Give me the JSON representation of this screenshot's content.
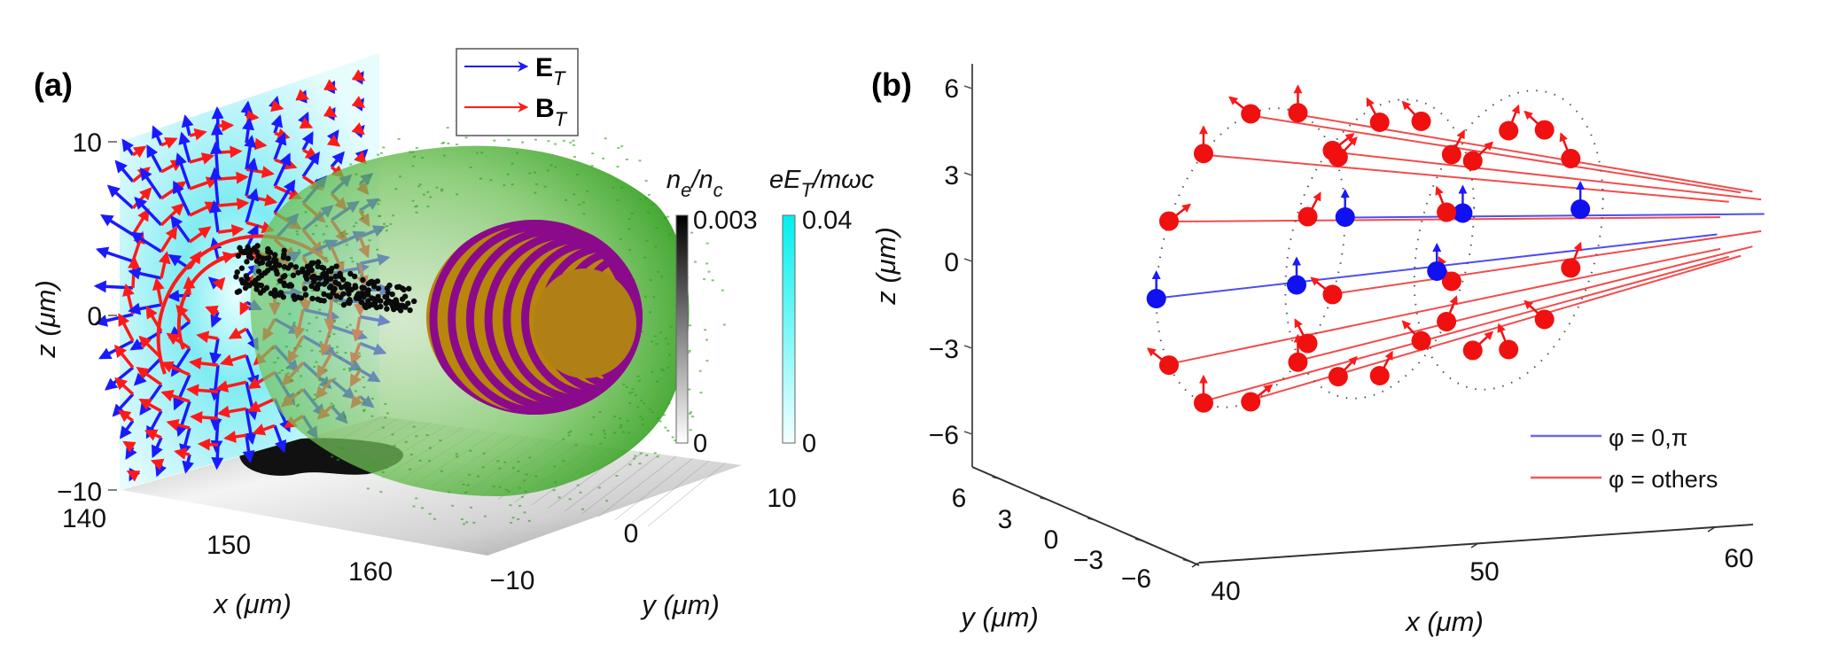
{
  "chart_data": [
    {
      "panel": "(a)",
      "type": "scatter",
      "description": "3D rendering: transverse E (blue arrows) and B (red arrows) field vectors on a cyan back plane, green electron-density shell, black electron bunch, striped purple/gold sphere, and grayscale density projection on floor",
      "xlabel": "x (μm)",
      "ylabel": "y (μm)",
      "zlabel": "z (μm)",
      "x_ticks": [
        "140",
        "150",
        "160"
      ],
      "y_ticks": [
        "−10",
        "0",
        "10"
      ],
      "z_ticks": [
        "10",
        "0",
        "−10"
      ],
      "xlim": [
        140,
        165
      ],
      "ylim": [
        -10,
        10
      ],
      "zlim": [
        -10,
        10
      ],
      "legend": {
        "placement": "top-center",
        "entries": [
          {
            "label_main": "E",
            "label_sub": "T",
            "color": "#1a1aff"
          },
          {
            "label_main": "B",
            "label_sub": "T",
            "color": "#ff1a1a"
          }
        ]
      },
      "colorbars": [
        {
          "label_main": "n",
          "label_sub1": "e",
          "label_mid": "/n",
          "label_sub2": "c",
          "max": "0.003",
          "min": "0",
          "color_top": "#000000",
          "color_bottom": "#ffffff"
        },
        {
          "label_main": "eE",
          "label_sub1": "T",
          "label_mid": "/mωc",
          "label_sub2": "",
          "max": "0.04",
          "min": "0",
          "color_top": "#00f0f0",
          "color_bottom": "#ffffff"
        }
      ]
    },
    {
      "panel": "(b)",
      "type": "line",
      "description": "3D trajectories of sampled electrons on three rings; blue for φ = 0, π and red for other azimuths, with arrows showing transverse field direction",
      "xlabel": "x (μm)",
      "ylabel": "y (μm)",
      "zlabel": "z (μm)",
      "x_ticks": [
        "40",
        "50",
        "60"
      ],
      "y_ticks": [
        "6",
        "3",
        "0",
        "−3",
        "−6"
      ],
      "z_ticks": [
        "6",
        "3",
        "0",
        "−3",
        "−6"
      ],
      "xlim": [
        40,
        62
      ],
      "ylim": [
        -6,
        6
      ],
      "zlim": [
        -7,
        7
      ],
      "rings_x": [
        42,
        47,
        52
      ],
      "ring_radius": 5,
      "points_per_ring": 12,
      "legend": {
        "placement": "bottom-right",
        "entries": [
          {
            "label": "φ = 0,π",
            "color": "#6a6aee"
          },
          {
            "label": "φ = others",
            "color": "#ee5a5a"
          }
        ]
      },
      "series": [
        {
          "name": "φ = 0,π",
          "color": "#2222ee"
        },
        {
          "name": "φ = others",
          "color": "#ee1111"
        }
      ]
    }
  ]
}
